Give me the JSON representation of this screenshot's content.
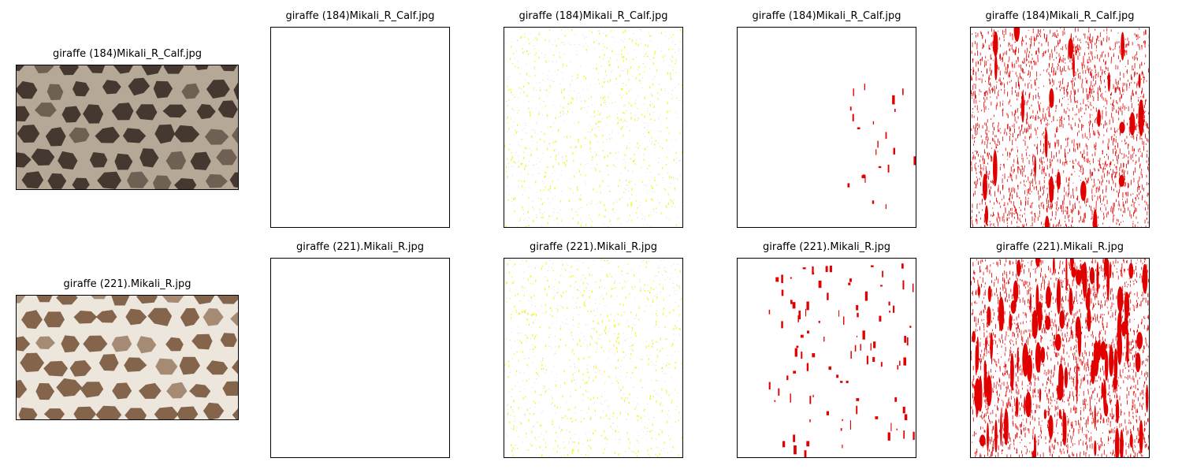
{
  "figure": {
    "rows": [
      {
        "titles": [
          "giraffe (184)Mikali_R_Calf.jpg",
          "giraffe (184)Mikali_R_Calf.jpg",
          "giraffe (184)Mikali_R_Calf.jpg",
          "giraffe (184)Mikali_R_Calf.jpg",
          "giraffe (184)Mikali_R_Calf.jpg"
        ],
        "photo_palette": {
          "base": "#b5a896",
          "patch": "#3b2f27",
          "accent": "#6a5a4e"
        }
      },
      {
        "titles": [
          "giraffe (221).Mikali_R.jpg",
          "giraffe (221).Mikali_R.jpg",
          "giraffe (221).Mikali_R.jpg",
          "giraffe (221).Mikali_R.jpg",
          "giraffe (221).Mikali_R.jpg"
        ],
        "photo_palette": {
          "base": "#ece6dc",
          "patch": "#7b5a3f",
          "accent": "#a0836a"
        }
      }
    ],
    "colors": {
      "yellow_speckle": "#f2f200",
      "gray_speckle": "#9a9a9a",
      "red_mask": "#e00000"
    }
  }
}
